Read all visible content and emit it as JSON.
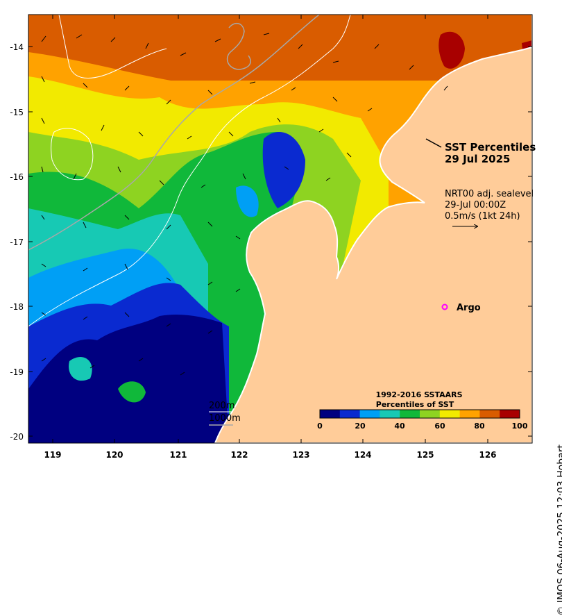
{
  "title": {
    "line1": "SST Percentiles",
    "line2": "29 Jul 2025"
  },
  "currents": {
    "product": "NRT00 adj. sealevel",
    "time": "29-Jul 00:00Z",
    "scale_label": "0.5m/s (1kt 24h)"
  },
  "marker": {
    "label": "Argo",
    "color": "#ff00ff"
  },
  "contours": {
    "depth_200": "200m",
    "depth_1000": "1000m"
  },
  "colorbar": {
    "title_line1": "1992-2016 SSTAARS",
    "title_line2": "Percentiles of SST",
    "ticks": [
      "0",
      "20",
      "40",
      "60",
      "80",
      "100"
    ],
    "colors": [
      "#000080",
      "#0a2ad0",
      "#009ff5",
      "#17c9b4",
      "#10b83a",
      "#8ed321",
      "#f2ea00",
      "#ffa200",
      "#d95c00",
      "#a80000"
    ]
  },
  "axes": {
    "x_ticks": [
      "119",
      "120",
      "121",
      "122",
      "123",
      "124",
      "125",
      "126"
    ],
    "y_ticks": [
      "-14",
      "-15",
      "-16",
      "-17",
      "-18",
      "-19",
      "-20"
    ]
  },
  "land_color": "#ffcc99",
  "credit": "© IMOS 06-Aug-2025 12:03 Hobart"
}
